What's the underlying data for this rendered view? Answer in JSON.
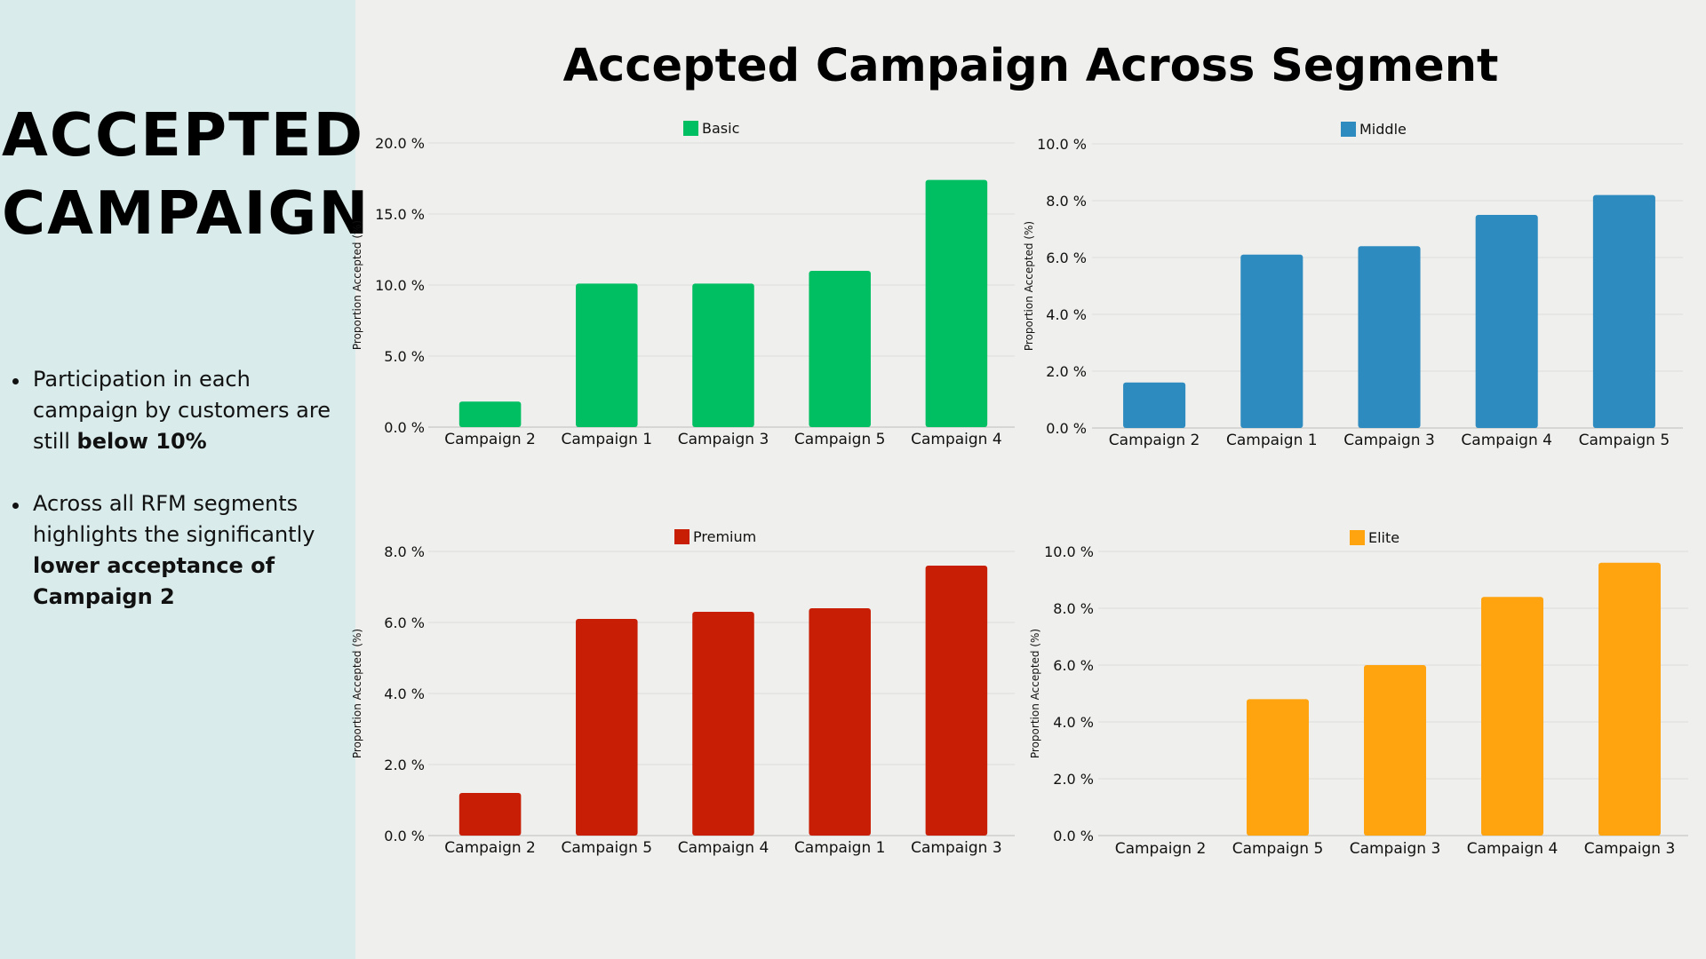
{
  "side_title": [
    "ACCEPTED",
    "CAMPAIGN"
  ],
  "bullets": [
    {
      "text": "Participation in each campaign by customers are still ",
      "bold": "below 10%",
      "after": ""
    },
    {
      "text": "Across all RFM segments highlights the significantly ",
      "bold": "lower acceptance of Campaign 2",
      "after": ""
    }
  ],
  "main_title": "Accepted Campaign Across Segment",
  "chart_data": [
    {
      "type": "bar",
      "legend": "Basic",
      "color": "#00bf63",
      "ylabel": "Proportion Accepted (%)",
      "categories": [
        "Campaign 2",
        "Campaign 1",
        "Campaign 3",
        "Campaign 5",
        "Campaign 4"
      ],
      "values": [
        1.8,
        10.1,
        10.1,
        11.0,
        17.4
      ],
      "ylim": [
        0,
        20
      ],
      "yticks": [
        "0.0 %",
        "5.0 %",
        "10.0 %",
        "15.0 %",
        "20.0 %"
      ],
      "grid": true,
      "legend_position": "top"
    },
    {
      "type": "bar",
      "legend": "Middle",
      "color": "#2e8bc0",
      "ylabel": "Proportion Accepted (%)",
      "categories": [
        "Campaign 2",
        "Campaign 1",
        "Campaign 3",
        "Campaign 4",
        "Campaign 5"
      ],
      "values": [
        1.6,
        6.1,
        6.4,
        7.5,
        8.2
      ],
      "ylim": [
        0,
        10
      ],
      "yticks": [
        "0.0 %",
        "2.0 %",
        "4.0 %",
        "6.0 %",
        "8.0 %",
        "10.0 %"
      ],
      "grid": true,
      "legend_position": "top"
    },
    {
      "type": "bar",
      "legend": "Premium",
      "color": "#c81e05",
      "ylabel": "Proportion Accepted (%)",
      "categories": [
        "Campaign 2",
        "Campaign 5",
        "Campaign 4",
        "Campaign 1",
        "Campaign 3"
      ],
      "values": [
        1.2,
        6.1,
        6.3,
        6.4,
        7.6
      ],
      "ylim": [
        0,
        8
      ],
      "yticks": [
        "0.0 %",
        "2.0 %",
        "4.0 %",
        "6.0 %",
        "8.0 %"
      ],
      "grid": true,
      "legend_position": "top"
    },
    {
      "type": "bar",
      "legend": "Elite",
      "color": "#ffa30f",
      "ylabel": "Proportion Accepted (%)",
      "categories": [
        "Campaign 2",
        "Campaign 5",
        "Campaign 3",
        "Campaign 4",
        "Campaign 3"
      ],
      "values": [
        0,
        4.8,
        6.0,
        8.4,
        9.6
      ],
      "ylim": [
        0,
        10
      ],
      "yticks": [
        "0.0 %",
        "2.0 %",
        "4.0 %",
        "6.0 %",
        "8.0 %",
        "10.0 %"
      ],
      "grid": true,
      "legend_position": "top"
    }
  ]
}
